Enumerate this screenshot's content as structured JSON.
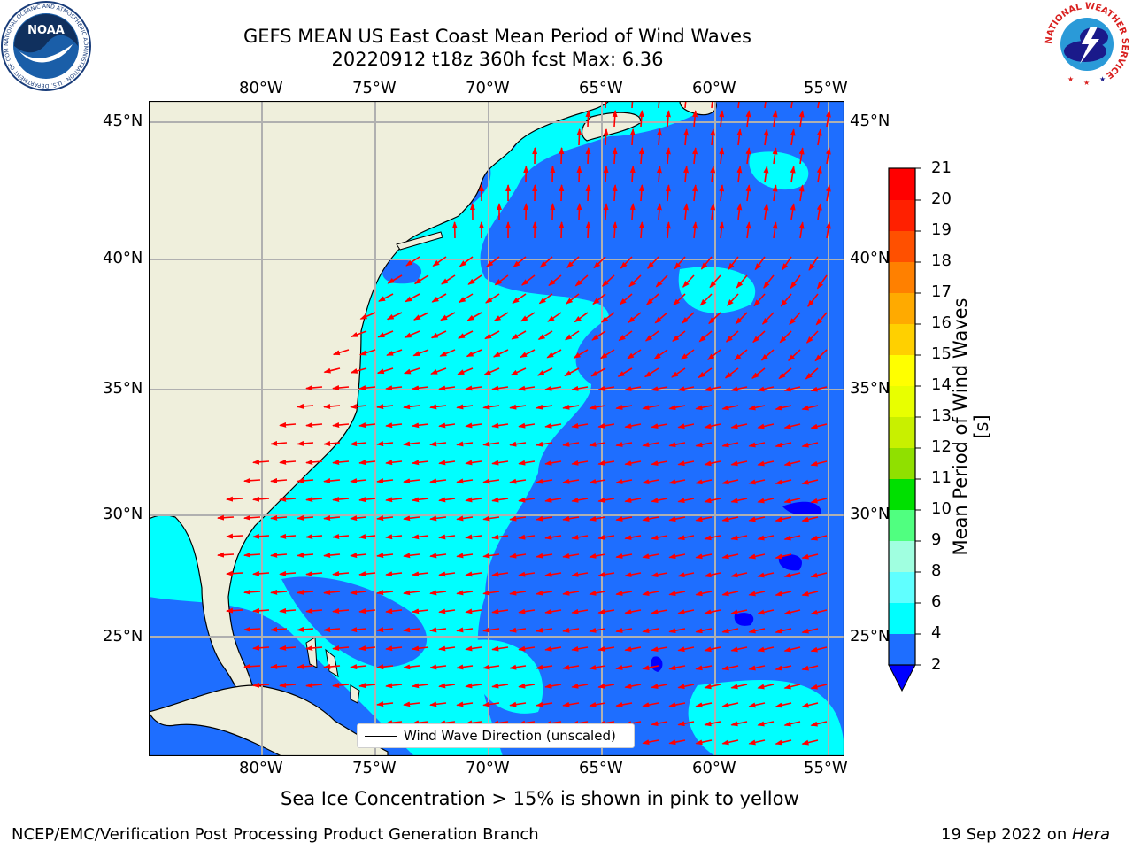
{
  "title": {
    "line1": "GEFS MEAN US East Coast Mean Period of Wind Waves",
    "line2": "20220912 t18z 360h fcst   Max: 6.36"
  },
  "axes": {
    "lon_ticks": [
      "80°W",
      "75°W",
      "70°W",
      "65°W",
      "60°W",
      "55°W"
    ],
    "lat_ticks": [
      "45°N",
      "40°N",
      "35°N",
      "30°N",
      "25°N"
    ]
  },
  "legend": {
    "label": "Wind Wave Direction (unscaled)"
  },
  "colorbar": {
    "label": "Mean Period of Wind Waves [s]",
    "ticks": [
      "21",
      "20",
      "19",
      "18",
      "17",
      "16",
      "15",
      "14",
      "13",
      "12",
      "11",
      "10",
      "9",
      "8",
      "6",
      "4",
      "2"
    ],
    "colors": {
      "lt2": "#0000ff",
      "b2_4": "#1e6eff",
      "b4_6": "#00ffff",
      "b6_7": "#40ffff",
      "b7_8": "#80ffff",
      "b8_9": "#a0ffe0",
      "b9_10": "#50ff80",
      "b10_11": "#00e000",
      "b11_12": "#50d000",
      "b12_13": "#a0e000",
      "b13_14": "#d0f000",
      "b14_15": "#e8ff00",
      "b15_16": "#ffff00",
      "b16_17": "#ffd000",
      "b17_18": "#ffaa00",
      "b18_19": "#ff8000",
      "b19_20": "#ff5000",
      "b20_21": "#ff2000",
      "b21": "#ff0000"
    }
  },
  "annotation": "Sea Ice Concentration > 15% is shown in pink to yellow",
  "footer": {
    "left": "NCEP/EMC/Verification Post Processing Product Generation Branch",
    "date": "19 Sep 2022 on ",
    "machine": "Hera"
  },
  "logos": {
    "noaa": "NOAA",
    "noaa_ring": "NATIONAL OCEANIC AND ATMOSPHERIC ADMINISTRATION · U.S. DEPARTMENT OF COMMERCE",
    "nws_ring": "NATIONAL WEATHER SERVICE"
  },
  "map": {
    "arrow_color": "#ff0000",
    "land_color": "#efefdc",
    "grid_color": "#b0b0b0"
  }
}
